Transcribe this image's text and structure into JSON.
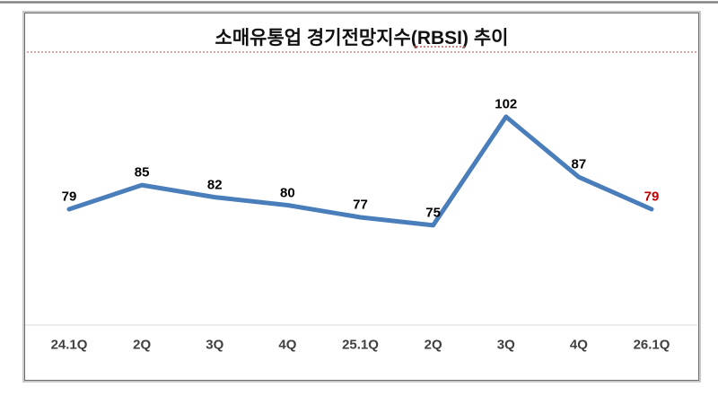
{
  "chart_data": {
    "type": "line",
    "title": "소매유통업 경기전망지수(RBSI) 추이",
    "categories": [
      "24.1Q",
      "2Q",
      "3Q",
      "4Q",
      "25.1Q",
      "2Q",
      "3Q",
      "4Q",
      "26.1Q"
    ],
    "values": [
      79,
      85,
      82,
      80,
      77,
      75,
      102,
      87,
      79
    ],
    "series": [
      {
        "name": "RBSI",
        "values": [
          79,
          85,
          82,
          80,
          77,
          75,
          102,
          87,
          79
        ]
      }
    ],
    "ylim": [
      50,
      110
    ],
    "grid": false,
    "legend": false,
    "data_labels": true,
    "colors": {
      "line": "#4a7ebb",
      "value_label": "#000000",
      "last_value_label": "#c00000",
      "axis_label": "#404040",
      "axis_line": "#d9d9d9",
      "title_underline": "#cc8f8f"
    }
  }
}
